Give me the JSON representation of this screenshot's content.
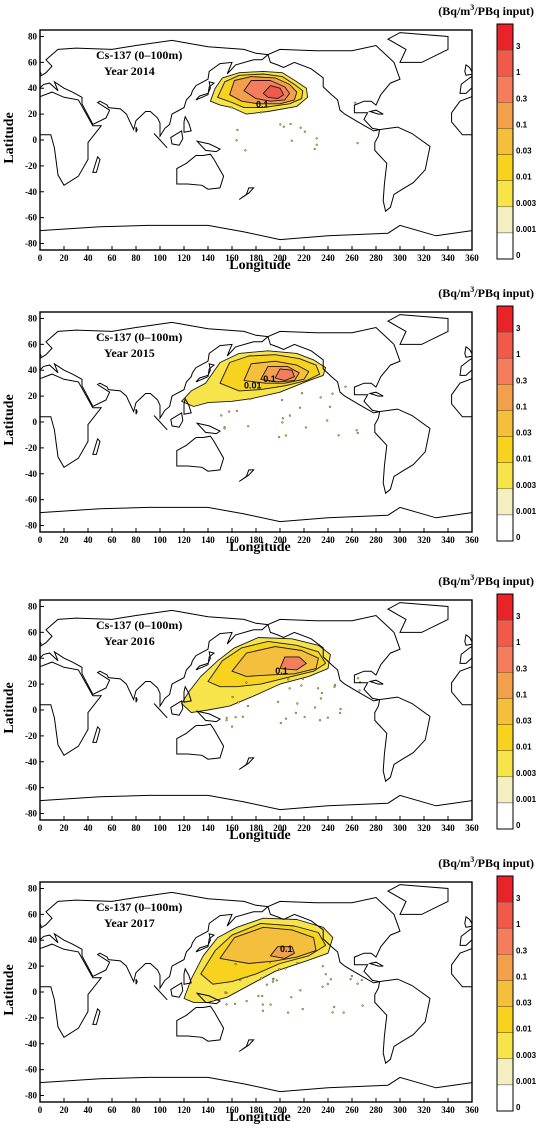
{
  "units_label": "(Bq/m³/PBq input)",
  "units_parts": {
    "pre": "(Bq/m",
    "sup": "3",
    "post": "/PBq input)"
  },
  "xlabel": "Longitude",
  "ylabel": "Latitude",
  "x_ticks": [
    "0",
    "20",
    "40",
    "60",
    "80",
    "100",
    "120",
    "140",
    "160",
    "180",
    "200",
    "220",
    "240",
    "260",
    "280",
    "300",
    "320",
    "340",
    "360"
  ],
  "y_ticks": [
    "80",
    "60",
    "40",
    "20",
    "0",
    "-20",
    "-40",
    "-60",
    "-80"
  ],
  "colorbar": {
    "labels": [
      "3",
      "1",
      "0.3",
      "0.1",
      "0.03",
      "0.01",
      "0.003",
      "0.001",
      "0"
    ],
    "colors": [
      "#e8242a",
      "#ef5a4a",
      "#f37d5c",
      "#f3a04d",
      "#f5bf3e",
      "#f7d21f",
      "#f7e34a",
      "#f3efc0",
      "#ffffff"
    ]
  },
  "panels": [
    {
      "title": "Cs-137 (0–100m)",
      "year_label": "Year 2014",
      "contour_labels": [
        {
          "text": "0.1"
        }
      ]
    },
    {
      "title": "Cs-137 (0–100m)",
      "year_label": "Year 2015",
      "contour_labels": [
        {
          "text": "0.01"
        },
        {
          "text": "0.1"
        }
      ]
    },
    {
      "title": "Cs-137 (0–100m)",
      "year_label": "Year 2016",
      "contour_labels": [
        {
          "text": "0.1"
        }
      ]
    },
    {
      "title": "Cs-137 (0–100m)",
      "year_label": "Year 2017",
      "contour_labels": [
        {
          "text": "0.1"
        }
      ]
    }
  ]
}
